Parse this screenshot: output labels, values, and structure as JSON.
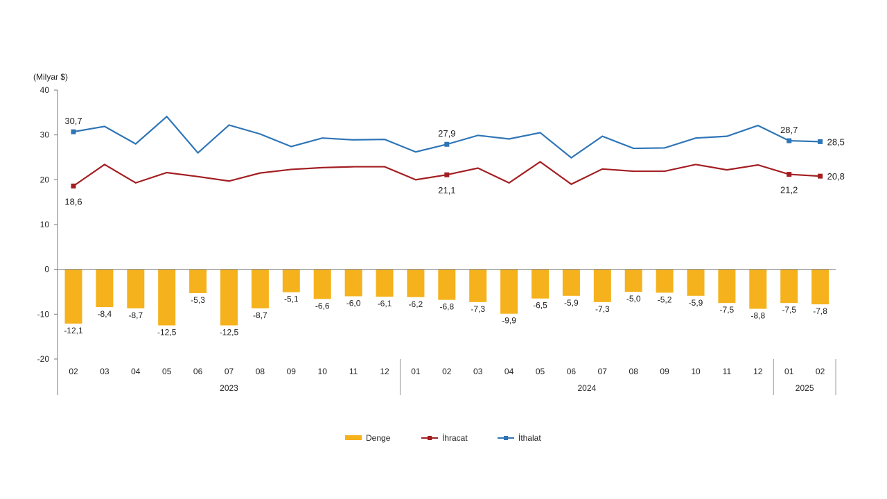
{
  "chart_data": {
    "type": "bar+line",
    "unit_label": "(Milyar $)",
    "ylim": [
      -20,
      40
    ],
    "yticks": [
      40,
      30,
      20,
      10,
      0,
      -10,
      -20
    ],
    "grid": false,
    "legend_position": "bottom",
    "categories": [
      "02",
      "03",
      "04",
      "05",
      "06",
      "07",
      "08",
      "09",
      "10",
      "11",
      "12",
      "01",
      "02",
      "03",
      "04",
      "05",
      "06",
      "07",
      "08",
      "09",
      "10",
      "11",
      "12",
      "01",
      "02"
    ],
    "year_groups": [
      {
        "label": "2023",
        "start": 0,
        "end": 10
      },
      {
        "label": "2024",
        "start": 11,
        "end": 22
      },
      {
        "label": "2025",
        "start": 23,
        "end": 24
      }
    ],
    "series": [
      {
        "name": "Denge",
        "type": "bar",
        "color": "#F5B21C",
        "values": [
          -12.1,
          -8.4,
          -8.7,
          -12.5,
          -5.3,
          -12.5,
          -8.7,
          -5.1,
          -6.6,
          -6.0,
          -6.1,
          -6.2,
          -6.8,
          -7.3,
          -9.9,
          -6.5,
          -5.9,
          -7.3,
          -5.0,
          -5.2,
          -5.9,
          -7.5,
          -8.8,
          -7.5,
          -7.8
        ],
        "labels": [
          "-12,1",
          "-8,4",
          "-8,7",
          "-12,5",
          "-5,3",
          "-12,5",
          "-8,7",
          "-5,1",
          "-6,6",
          "-6,0",
          "-6,1",
          "-6,2",
          "-6,8",
          "-7,3",
          "-9,9",
          "-6,5",
          "-5,9",
          "-7,3",
          "-5,0",
          "-5,2",
          "-5,9",
          "-7,5",
          "-8,8",
          "-7,5",
          "-7,8"
        ]
      },
      {
        "name": "İhracat",
        "type": "line",
        "color": "#A31E22",
        "values": [
          18.6,
          23.4,
          19.3,
          21.6,
          20.7,
          19.7,
          21.5,
          22.3,
          22.7,
          22.9,
          22.9,
          20.0,
          21.1,
          22.6,
          19.3,
          24.0,
          19.0,
          22.4,
          21.9,
          21.9,
          23.4,
          22.2,
          23.3,
          21.2,
          20.8
        ],
        "point_labels": [
          {
            "index": 0,
            "text": "18,6",
            "pos": "below"
          },
          {
            "index": 12,
            "text": "21,1",
            "pos": "below"
          },
          {
            "index": 23,
            "text": "21,2",
            "pos": "below"
          },
          {
            "index": 24,
            "text": "20,8",
            "pos": "right"
          }
        ]
      },
      {
        "name": "İthalat",
        "type": "line",
        "color": "#2E75B6",
        "values": [
          30.7,
          31.9,
          28.0,
          34.1,
          26.0,
          32.2,
          30.2,
          27.4,
          29.3,
          28.9,
          29.0,
          26.2,
          27.9,
          29.9,
          29.1,
          30.5,
          24.9,
          29.7,
          27.0,
          27.1,
          29.3,
          29.7,
          32.1,
          28.7,
          28.5
        ],
        "point_labels": [
          {
            "index": 0,
            "text": "30,7",
            "pos": "above"
          },
          {
            "index": 12,
            "text": "27,9",
            "pos": "above"
          },
          {
            "index": 23,
            "text": "28,7",
            "pos": "above"
          },
          {
            "index": 24,
            "text": "28,5",
            "pos": "right"
          }
        ]
      }
    ]
  }
}
